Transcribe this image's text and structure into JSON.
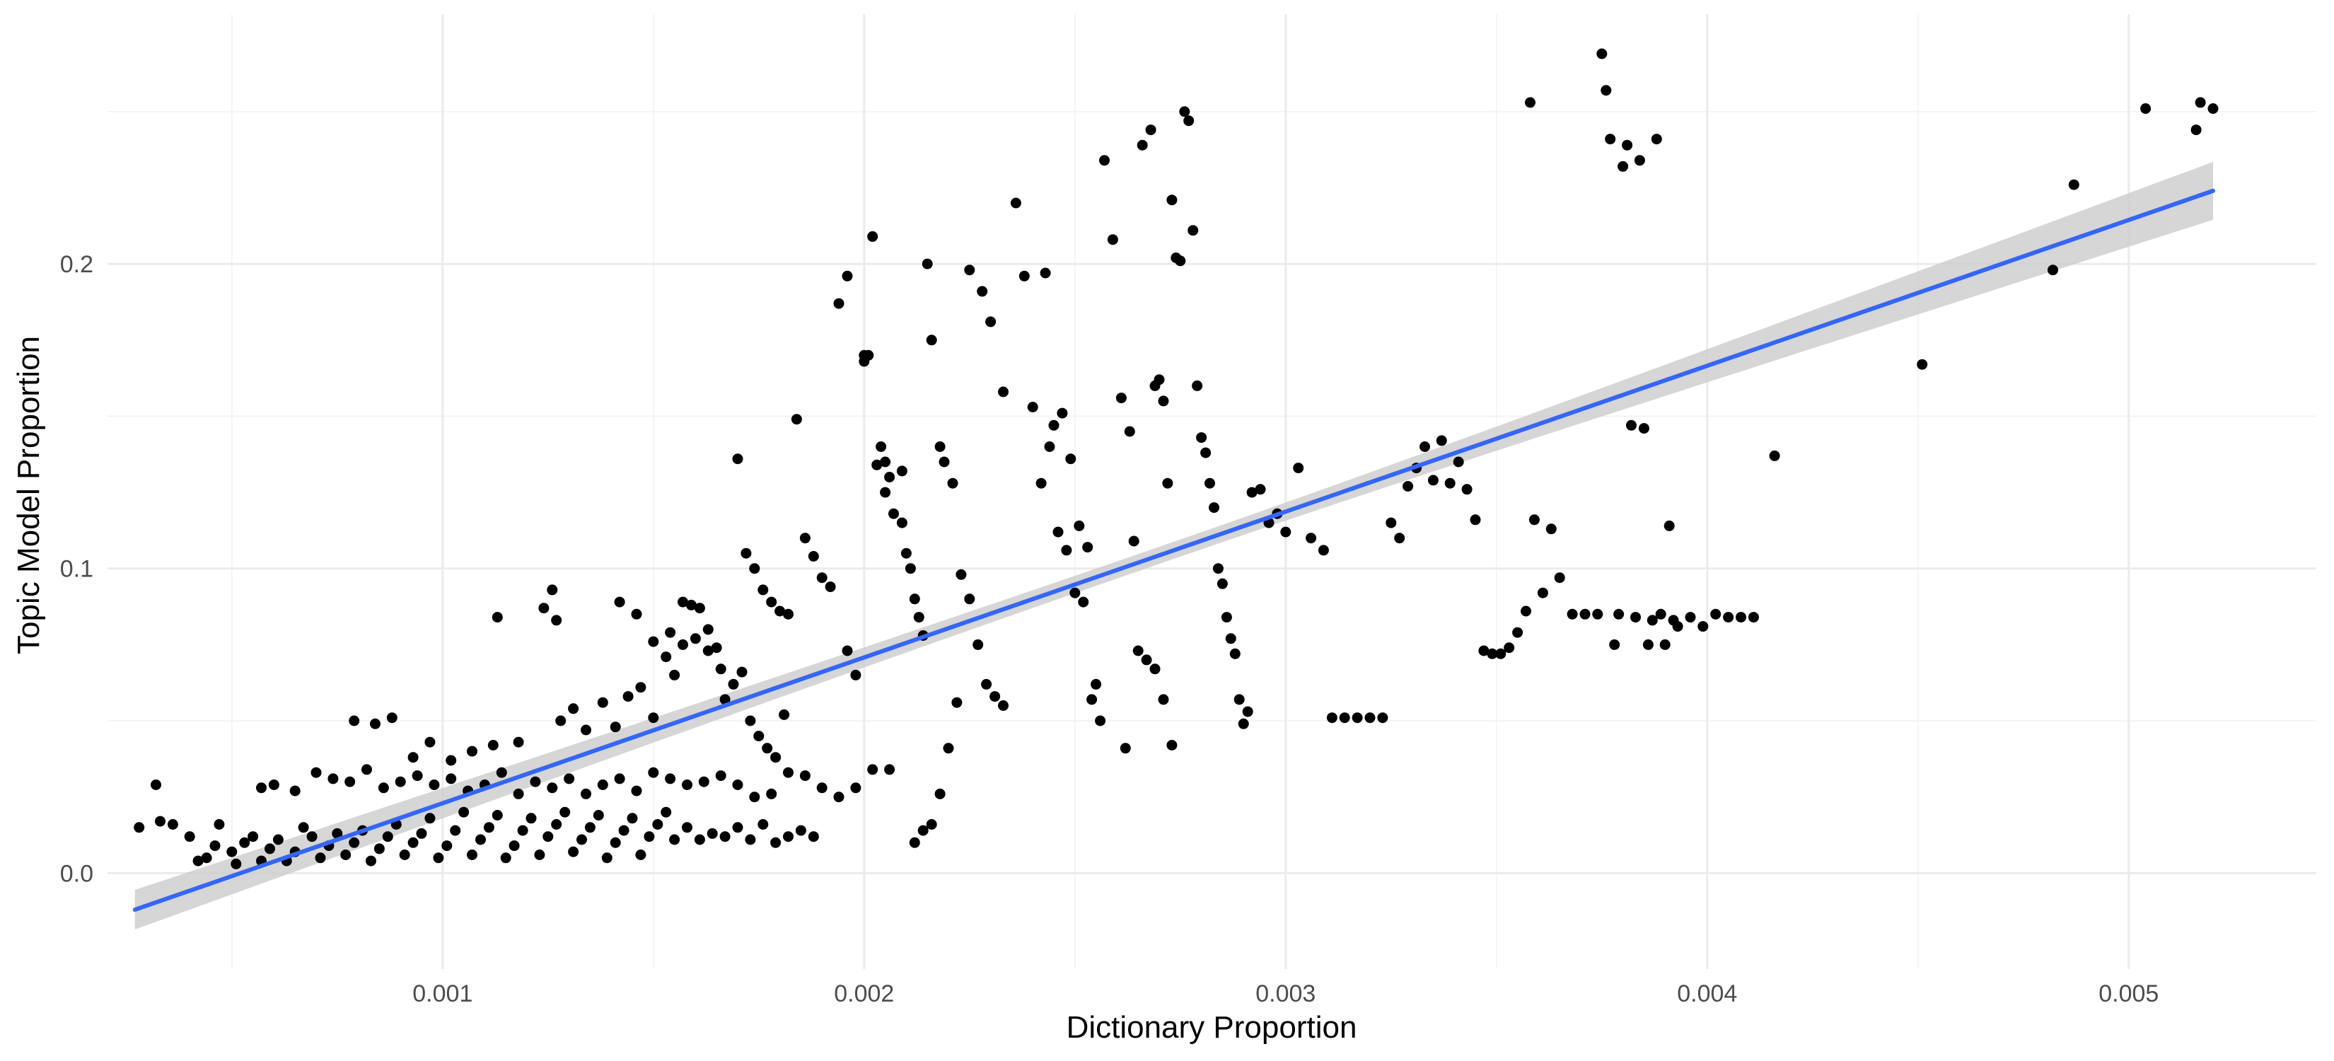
{
  "chart_data": {
    "type": "scatter",
    "title": "",
    "xlabel": "Dictionary Proportion",
    "ylabel": "Topic Model Proportion",
    "xlim": [
      0.000205,
      0.005445
    ],
    "ylim": [
      -0.0315,
      0.282
    ],
    "x_ticks": [
      0.001,
      0.002,
      0.003,
      0.004,
      0.005
    ],
    "x_tick_labels": [
      "0.001",
      "0.002",
      "0.003",
      "0.004",
      "0.005"
    ],
    "y_ticks": [
      0.0,
      0.1,
      0.2
    ],
    "y_tick_labels": [
      "0.0",
      "0.1",
      "0.2"
    ],
    "grid": true,
    "legend": "none",
    "colors": {
      "points": "#000000",
      "fit_line": "#3366ff",
      "confidence_band": "#cccccc",
      "grid": "#ebebeb",
      "background": "#ffffff"
    },
    "fit": {
      "method": "linear",
      "x": [
        0.00027,
        0.0052
      ],
      "y": [
        -0.012,
        0.224
      ],
      "band_half_width_ends": [
        0.0065,
        0.0095
      ],
      "band_half_width_center": 0.0028
    },
    "points": [
      [
        0.00028,
        0.015
      ],
      [
        0.00032,
        0.029
      ],
      [
        0.00033,
        0.017
      ],
      [
        0.00036,
        0.016
      ],
      [
        0.0004,
        0.012
      ],
      [
        0.00042,
        0.004
      ],
      [
        0.00044,
        0.005
      ],
      [
        0.00046,
        0.009
      ],
      [
        0.00047,
        0.016
      ],
      [
        0.0005,
        0.007
      ],
      [
        0.00051,
        0.003
      ],
      [
        0.00053,
        0.01
      ],
      [
        0.00055,
        0.012
      ],
      [
        0.00057,
        0.004
      ],
      [
        0.00059,
        0.008
      ],
      [
        0.00061,
        0.011
      ],
      [
        0.00063,
        0.004
      ],
      [
        0.00065,
        0.007
      ],
      [
        0.00067,
        0.015
      ],
      [
        0.00069,
        0.012
      ],
      [
        0.00071,
        0.005
      ],
      [
        0.00073,
        0.009
      ],
      [
        0.00075,
        0.013
      ],
      [
        0.00077,
        0.006
      ],
      [
        0.00079,
        0.01
      ],
      [
        0.00081,
        0.014
      ],
      [
        0.00083,
        0.004
      ],
      [
        0.00085,
        0.008
      ],
      [
        0.00087,
        0.012
      ],
      [
        0.00089,
        0.016
      ],
      [
        0.00091,
        0.006
      ],
      [
        0.00093,
        0.01
      ],
      [
        0.00095,
        0.013
      ],
      [
        0.00097,
        0.018
      ],
      [
        0.00099,
        0.005
      ],
      [
        0.00101,
        0.009
      ],
      [
        0.00103,
        0.014
      ],
      [
        0.00105,
        0.02
      ],
      [
        0.00107,
        0.006
      ],
      [
        0.00109,
        0.011
      ],
      [
        0.00111,
        0.015
      ],
      [
        0.00113,
        0.019
      ],
      [
        0.00115,
        0.005
      ],
      [
        0.00117,
        0.009
      ],
      [
        0.00119,
        0.014
      ],
      [
        0.00121,
        0.018
      ],
      [
        0.00123,
        0.006
      ],
      [
        0.00125,
        0.012
      ],
      [
        0.00127,
        0.016
      ],
      [
        0.00129,
        0.02
      ],
      [
        0.00131,
        0.007
      ],
      [
        0.00133,
        0.011
      ],
      [
        0.00135,
        0.015
      ],
      [
        0.00137,
        0.019
      ],
      [
        0.00139,
        0.005
      ],
      [
        0.00141,
        0.01
      ],
      [
        0.00143,
        0.014
      ],
      [
        0.00145,
        0.018
      ],
      [
        0.00147,
        0.006
      ],
      [
        0.00149,
        0.012
      ],
      [
        0.00151,
        0.016
      ],
      [
        0.00153,
        0.02
      ],
      [
        0.00155,
        0.011
      ],
      [
        0.00158,
        0.015
      ],
      [
        0.00161,
        0.011
      ],
      [
        0.00164,
        0.013
      ],
      [
        0.00167,
        0.012
      ],
      [
        0.0017,
        0.015
      ],
      [
        0.00173,
        0.011
      ],
      [
        0.00176,
        0.016
      ],
      [
        0.00179,
        0.01
      ],
      [
        0.00182,
        0.012
      ],
      [
        0.00185,
        0.014
      ],
      [
        0.00188,
        0.012
      ],
      [
        0.00057,
        0.028
      ],
      [
        0.0006,
        0.029
      ],
      [
        0.00065,
        0.027
      ],
      [
        0.0007,
        0.033
      ],
      [
        0.00074,
        0.031
      ],
      [
        0.00078,
        0.03
      ],
      [
        0.00082,
        0.034
      ],
      [
        0.00086,
        0.028
      ],
      [
        0.0009,
        0.03
      ],
      [
        0.00094,
        0.032
      ],
      [
        0.00098,
        0.029
      ],
      [
        0.00102,
        0.031
      ],
      [
        0.00106,
        0.027
      ],
      [
        0.0011,
        0.029
      ],
      [
        0.00114,
        0.033
      ],
      [
        0.00118,
        0.026
      ],
      [
        0.00122,
        0.03
      ],
      [
        0.00126,
        0.028
      ],
      [
        0.0013,
        0.031
      ],
      [
        0.00134,
        0.026
      ],
      [
        0.00138,
        0.029
      ],
      [
        0.00142,
        0.031
      ],
      [
        0.00146,
        0.027
      ],
      [
        0.0015,
        0.033
      ],
      [
        0.00154,
        0.031
      ],
      [
        0.00158,
        0.029
      ],
      [
        0.00162,
        0.03
      ],
      [
        0.00166,
        0.032
      ],
      [
        0.0017,
        0.029
      ],
      [
        0.00174,
        0.025
      ],
      [
        0.00178,
        0.026
      ],
      [
        0.00182,
        0.033
      ],
      [
        0.00186,
        0.032
      ],
      [
        0.0019,
        0.028
      ],
      [
        0.00194,
        0.025
      ],
      [
        0.00198,
        0.028
      ],
      [
        0.00202,
        0.034
      ],
      [
        0.00206,
        0.034
      ],
      [
        0.00079,
        0.05
      ],
      [
        0.00084,
        0.049
      ],
      [
        0.00088,
        0.051
      ],
      [
        0.00093,
        0.038
      ],
      [
        0.00097,
        0.043
      ],
      [
        0.00102,
        0.037
      ],
      [
        0.00107,
        0.04
      ],
      [
        0.00112,
        0.042
      ],
      [
        0.00118,
        0.043
      ],
      [
        0.00113,
        0.084
      ],
      [
        0.00124,
        0.087
      ],
      [
        0.00126,
        0.093
      ],
      [
        0.00127,
        0.083
      ],
      [
        0.00128,
        0.05
      ],
      [
        0.00131,
        0.054
      ],
      [
        0.00134,
        0.047
      ],
      [
        0.00138,
        0.056
      ],
      [
        0.00141,
        0.048
      ],
      [
        0.00144,
        0.058
      ],
      [
        0.00147,
        0.061
      ],
      [
        0.0015,
        0.051
      ],
      [
        0.00153,
        0.071
      ],
      [
        0.00155,
        0.065
      ],
      [
        0.00157,
        0.089
      ],
      [
        0.00159,
        0.088
      ],
      [
        0.00161,
        0.087
      ],
      [
        0.00163,
        0.08
      ],
      [
        0.00165,
        0.074
      ],
      [
        0.00167,
        0.057
      ],
      [
        0.00169,
        0.062
      ],
      [
        0.00171,
        0.066
      ],
      [
        0.00173,
        0.05
      ],
      [
        0.00175,
        0.045
      ],
      [
        0.00177,
        0.041
      ],
      [
        0.00179,
        0.038
      ],
      [
        0.00181,
        0.052
      ],
      [
        0.00142,
        0.089
      ],
      [
        0.00146,
        0.085
      ],
      [
        0.0015,
        0.076
      ],
      [
        0.00154,
        0.079
      ],
      [
        0.00157,
        0.075
      ],
      [
        0.0016,
        0.077
      ],
      [
        0.00163,
        0.073
      ],
      [
        0.00166,
        0.067
      ],
      [
        0.0017,
        0.136
      ],
      [
        0.00172,
        0.105
      ],
      [
        0.00174,
        0.1
      ],
      [
        0.00176,
        0.093
      ],
      [
        0.00178,
        0.089
      ],
      [
        0.0018,
        0.086
      ],
      [
        0.00182,
        0.085
      ],
      [
        0.00184,
        0.149
      ],
      [
        0.00186,
        0.11
      ],
      [
        0.00188,
        0.104
      ],
      [
        0.0019,
        0.097
      ],
      [
        0.00192,
        0.094
      ],
      [
        0.00194,
        0.187
      ],
      [
        0.00196,
        0.073
      ],
      [
        0.00198,
        0.065
      ],
      [
        0.002,
        0.168
      ],
      [
        0.00201,
        0.17
      ],
      [
        0.00202,
        0.209
      ],
      [
        0.00203,
        0.134
      ],
      [
        0.00204,
        0.14
      ],
      [
        0.00205,
        0.125
      ],
      [
        0.00206,
        0.13
      ],
      [
        0.00207,
        0.118
      ],
      [
        0.00209,
        0.115
      ],
      [
        0.0021,
        0.105
      ],
      [
        0.00211,
        0.1
      ],
      [
        0.00212,
        0.09
      ],
      [
        0.00213,
        0.084
      ],
      [
        0.00214,
        0.078
      ],
      [
        0.00215,
        0.2
      ],
      [
        0.00216,
        0.175
      ],
      [
        0.00218,
        0.14
      ],
      [
        0.00219,
        0.135
      ],
      [
        0.00221,
        0.128
      ],
      [
        0.00223,
        0.098
      ],
      [
        0.00225,
        0.09
      ],
      [
        0.00227,
        0.075
      ],
      [
        0.00229,
        0.062
      ],
      [
        0.00231,
        0.058
      ],
      [
        0.00233,
        0.055
      ],
      [
        0.00196,
        0.196
      ],
      [
        0.002,
        0.17
      ],
      [
        0.00205,
        0.135
      ],
      [
        0.00209,
        0.132
      ],
      [
        0.00212,
        0.01
      ],
      [
        0.00214,
        0.014
      ],
      [
        0.00216,
        0.016
      ],
      [
        0.00218,
        0.026
      ],
      [
        0.0022,
        0.041
      ],
      [
        0.00222,
        0.056
      ],
      [
        0.00225,
        0.198
      ],
      [
        0.00228,
        0.191
      ],
      [
        0.0023,
        0.181
      ],
      [
        0.00233,
        0.158
      ],
      [
        0.00236,
        0.22
      ],
      [
        0.00238,
        0.196
      ],
      [
        0.0024,
        0.153
      ],
      [
        0.00242,
        0.128
      ],
      [
        0.00244,
        0.14
      ],
      [
        0.00246,
        0.112
      ],
      [
        0.00248,
        0.106
      ],
      [
        0.0025,
        0.092
      ],
      [
        0.00252,
        0.089
      ],
      [
        0.00254,
        0.057
      ],
      [
        0.00256,
        0.05
      ],
      [
        0.00243,
        0.197
      ],
      [
        0.00245,
        0.147
      ],
      [
        0.00247,
        0.151
      ],
      [
        0.00249,
        0.136
      ],
      [
        0.00251,
        0.114
      ],
      [
        0.00253,
        0.107
      ],
      [
        0.00255,
        0.062
      ],
      [
        0.00257,
        0.234
      ],
      [
        0.00259,
        0.208
      ],
      [
        0.00261,
        0.156
      ],
      [
        0.00263,
        0.145
      ],
      [
        0.00265,
        0.073
      ],
      [
        0.00267,
        0.07
      ],
      [
        0.00269,
        0.067
      ],
      [
        0.00271,
        0.057
      ],
      [
        0.00273,
        0.042
      ],
      [
        0.00262,
        0.041
      ],
      [
        0.00264,
        0.109
      ],
      [
        0.00266,
        0.239
      ],
      [
        0.00268,
        0.244
      ],
      [
        0.00269,
        0.16
      ],
      [
        0.0027,
        0.162
      ],
      [
        0.00271,
        0.155
      ],
      [
        0.00272,
        0.128
      ],
      [
        0.00273,
        0.221
      ],
      [
        0.00274,
        0.202
      ],
      [
        0.00275,
        0.201
      ],
      [
        0.00276,
        0.25
      ],
      [
        0.00277,
        0.247
      ],
      [
        0.00278,
        0.211
      ],
      [
        0.00279,
        0.16
      ],
      [
        0.0028,
        0.143
      ],
      [
        0.00281,
        0.138
      ],
      [
        0.00282,
        0.128
      ],
      [
        0.00283,
        0.12
      ],
      [
        0.00284,
        0.1
      ],
      [
        0.00285,
        0.095
      ],
      [
        0.00286,
        0.084
      ],
      [
        0.00287,
        0.077
      ],
      [
        0.00288,
        0.072
      ],
      [
        0.00289,
        0.057
      ],
      [
        0.0029,
        0.049
      ],
      [
        0.00291,
        0.053
      ],
      [
        0.00292,
        0.125
      ],
      [
        0.00294,
        0.126
      ],
      [
        0.00296,
        0.115
      ],
      [
        0.00298,
        0.118
      ],
      [
        0.003,
        0.112
      ],
      [
        0.00303,
        0.133
      ],
      [
        0.00306,
        0.11
      ],
      [
        0.00309,
        0.106
      ],
      [
        0.00311,
        0.051
      ],
      [
        0.00314,
        0.051
      ],
      [
        0.00317,
        0.051
      ],
      [
        0.0032,
        0.051
      ],
      [
        0.00323,
        0.051
      ],
      [
        0.00325,
        0.115
      ],
      [
        0.00327,
        0.11
      ],
      [
        0.00329,
        0.127
      ],
      [
        0.00331,
        0.133
      ],
      [
        0.00333,
        0.14
      ],
      [
        0.00335,
        0.129
      ],
      [
        0.00337,
        0.142
      ],
      [
        0.00339,
        0.128
      ],
      [
        0.00341,
        0.135
      ],
      [
        0.00343,
        0.126
      ],
      [
        0.00345,
        0.116
      ],
      [
        0.00347,
        0.073
      ],
      [
        0.00349,
        0.072
      ],
      [
        0.00351,
        0.072
      ],
      [
        0.00353,
        0.074
      ],
      [
        0.00355,
        0.079
      ],
      [
        0.00357,
        0.086
      ],
      [
        0.00359,
        0.116
      ],
      [
        0.00361,
        0.092
      ],
      [
        0.00363,
        0.113
      ],
      [
        0.00365,
        0.097
      ],
      [
        0.00358,
        0.253
      ],
      [
        0.00368,
        0.085
      ],
      [
        0.00371,
        0.085
      ],
      [
        0.00374,
        0.085
      ],
      [
        0.00375,
        0.269
      ],
      [
        0.00376,
        0.257
      ],
      [
        0.00377,
        0.241
      ],
      [
        0.00378,
        0.075
      ],
      [
        0.00379,
        0.085
      ],
      [
        0.0038,
        0.232
      ],
      [
        0.00381,
        0.239
      ],
      [
        0.00382,
        0.147
      ],
      [
        0.00383,
        0.084
      ],
      [
        0.00384,
        0.234
      ],
      [
        0.00385,
        0.146
      ],
      [
        0.00386,
        0.075
      ],
      [
        0.00387,
        0.083
      ],
      [
        0.00388,
        0.241
      ],
      [
        0.00389,
        0.085
      ],
      [
        0.0039,
        0.075
      ],
      [
        0.00391,
        0.114
      ],
      [
        0.00392,
        0.083
      ],
      [
        0.00393,
        0.081
      ],
      [
        0.00396,
        0.084
      ],
      [
        0.00399,
        0.081
      ],
      [
        0.00402,
        0.085
      ],
      [
        0.00405,
        0.084
      ],
      [
        0.00408,
        0.084
      ],
      [
        0.00411,
        0.084
      ],
      [
        0.00416,
        0.137
      ],
      [
        0.00451,
        0.167
      ],
      [
        0.00482,
        0.198
      ],
      [
        0.00487,
        0.226
      ],
      [
        0.00504,
        0.251
      ],
      [
        0.00516,
        0.244
      ],
      [
        0.00517,
        0.253
      ],
      [
        0.0052,
        0.251
      ]
    ]
  }
}
